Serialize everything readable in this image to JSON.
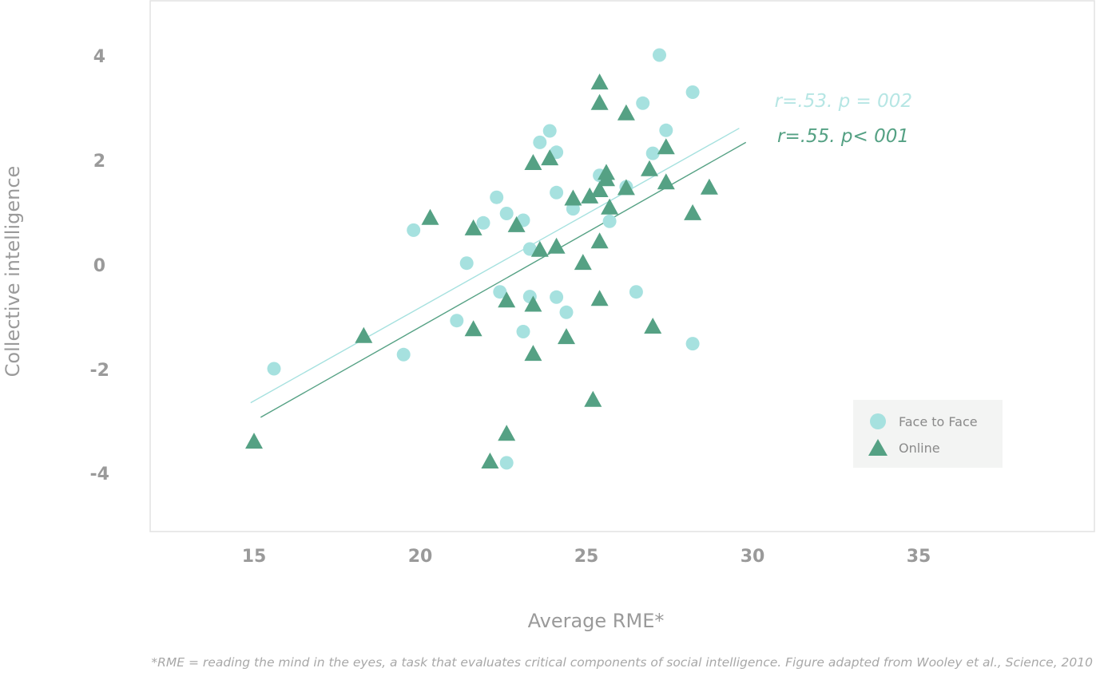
{
  "colors": {
    "face_to_face": "#a6e1df",
    "online": "#55a184",
    "axis_text": "#9a9a9a",
    "frame": "#e2e2e2",
    "legend_bg": "#f3f4f3"
  },
  "chart_data": {
    "type": "scatter",
    "title": "",
    "xlabel": "Average RME*",
    "ylabel": "Collective intelligence",
    "xlim": [
      12,
      40.5
    ],
    "ylim": [
      -5.1,
      5.05
    ],
    "x_ticks": [
      "15",
      "20",
      "25",
      "30",
      "35"
    ],
    "y_ticks": [
      "4",
      "2",
      "0",
      "-2",
      "-4"
    ],
    "grid": false,
    "legend": "bottom-right inside",
    "legend_items": [
      "Face to Face",
      "Online"
    ],
    "annotations": [
      "r=.53. p = 002",
      "r=.55. p< 001"
    ],
    "footnote": "*RME = reading the mind in the eyes, a task that evaluates critical components of social intelligence. Figure adapted from Wooley et al., Science, 2010",
    "series": [
      {
        "name": "Face to Face",
        "marker": "circle",
        "color": "#a6e1df",
        "points": [
          [
            15.6,
            -2.0
          ],
          [
            19.5,
            -1.73
          ],
          [
            19.8,
            0.65
          ],
          [
            21.1,
            -1.08
          ],
          [
            21.4,
            0.02
          ],
          [
            21.9,
            0.79
          ],
          [
            22.3,
            1.28
          ],
          [
            22.4,
            -0.53
          ],
          [
            22.6,
            0.97
          ],
          [
            22.6,
            -3.8
          ],
          [
            23.1,
            0.84
          ],
          [
            23.1,
            -1.29
          ],
          [
            23.3,
            0.29
          ],
          [
            23.3,
            -0.62
          ],
          [
            23.6,
            2.33
          ],
          [
            23.9,
            2.55
          ],
          [
            24.1,
            2.14
          ],
          [
            24.1,
            1.37
          ],
          [
            24.1,
            -0.63
          ],
          [
            24.4,
            -0.92
          ],
          [
            24.6,
            1.06
          ],
          [
            25.4,
            1.7
          ],
          [
            25.7,
            0.82
          ],
          [
            26.2,
            1.48
          ],
          [
            26.5,
            -0.53
          ],
          [
            26.7,
            3.08
          ],
          [
            27.0,
            2.12
          ],
          [
            27.2,
            4.0
          ],
          [
            27.4,
            2.56
          ],
          [
            28.2,
            3.29
          ],
          [
            28.2,
            -1.52
          ]
        ]
      },
      {
        "name": "Online",
        "marker": "triangle",
        "color": "#55a184",
        "points": [
          [
            15.0,
            -3.4
          ],
          [
            18.3,
            -1.38
          ],
          [
            20.3,
            0.88
          ],
          [
            21.6,
            0.68
          ],
          [
            21.6,
            -1.25
          ],
          [
            22.1,
            -3.78
          ],
          [
            22.6,
            -0.7
          ],
          [
            22.6,
            -3.25
          ],
          [
            22.9,
            0.74
          ],
          [
            23.4,
            1.93
          ],
          [
            23.4,
            -0.78
          ],
          [
            23.4,
            -1.72
          ],
          [
            23.6,
            0.27
          ],
          [
            23.9,
            2.02
          ],
          [
            24.1,
            0.33
          ],
          [
            24.4,
            -1.4
          ],
          [
            24.6,
            1.25
          ],
          [
            24.9,
            0.02
          ],
          [
            25.1,
            1.29
          ],
          [
            25.2,
            -2.6
          ],
          [
            25.4,
            3.47
          ],
          [
            25.4,
            3.08
          ],
          [
            25.4,
            1.41
          ],
          [
            25.4,
            0.43
          ],
          [
            25.4,
            -0.67
          ],
          [
            25.6,
            1.74
          ],
          [
            25.6,
            1.62
          ],
          [
            25.7,
            1.08
          ],
          [
            26.2,
            2.88
          ],
          [
            26.2,
            1.45
          ],
          [
            26.9,
            1.81
          ],
          [
            27.0,
            -1.2
          ],
          [
            27.4,
            2.23
          ],
          [
            27.4,
            1.56
          ],
          [
            28.2,
            0.97
          ],
          [
            28.7,
            1.46
          ]
        ]
      }
    ],
    "trend_lines": [
      {
        "name": "Face to Face",
        "color": "#a6e1df",
        "x": [
          14.9,
          29.6
        ],
        "y": [
          -2.65,
          2.6
        ]
      },
      {
        "name": "Online",
        "color": "#55a184",
        "x": [
          15.2,
          29.8
        ],
        "y": [
          -2.93,
          2.33
        ]
      }
    ]
  }
}
